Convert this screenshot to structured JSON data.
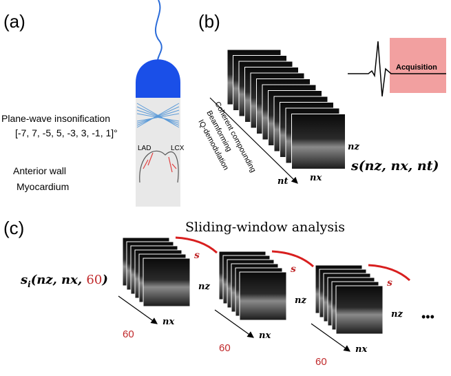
{
  "panels": {
    "a": {
      "label": "(a)",
      "insonification": "Plane-wave insonification",
      "angles": "[-7, 7, -5, 5, -3, 3, -1, 1]°",
      "lad": "LAD",
      "lcx": "LCX",
      "wall": "Anterior wall",
      "myocardium": "Myocardium"
    },
    "b": {
      "label": "(b)",
      "steps": [
        "Coherent compounding",
        "Beamforming",
        "IQ-demodulation"
      ],
      "nt": "nt",
      "nz": "nz",
      "nx": "nx",
      "signal": "s(nz, nx, nt)",
      "acquisition": "Acquisition"
    },
    "c": {
      "label": "(c)",
      "title": "Sliding-window analysis",
      "signal": {
        "name": "s",
        "sub": "i",
        "args": "(nz, nx, ",
        "window": "60",
        "close": ")"
      },
      "windows": [
        {
          "s": "s",
          "nz": "nz",
          "nx": "nx",
          "n": "60"
        },
        {
          "s": "s",
          "nz": "nz",
          "nx": "nx",
          "n": "60"
        },
        {
          "s": "s",
          "nz": "nz",
          "nx": "nx",
          "n": "60"
        }
      ],
      "more": "•••"
    }
  }
}
